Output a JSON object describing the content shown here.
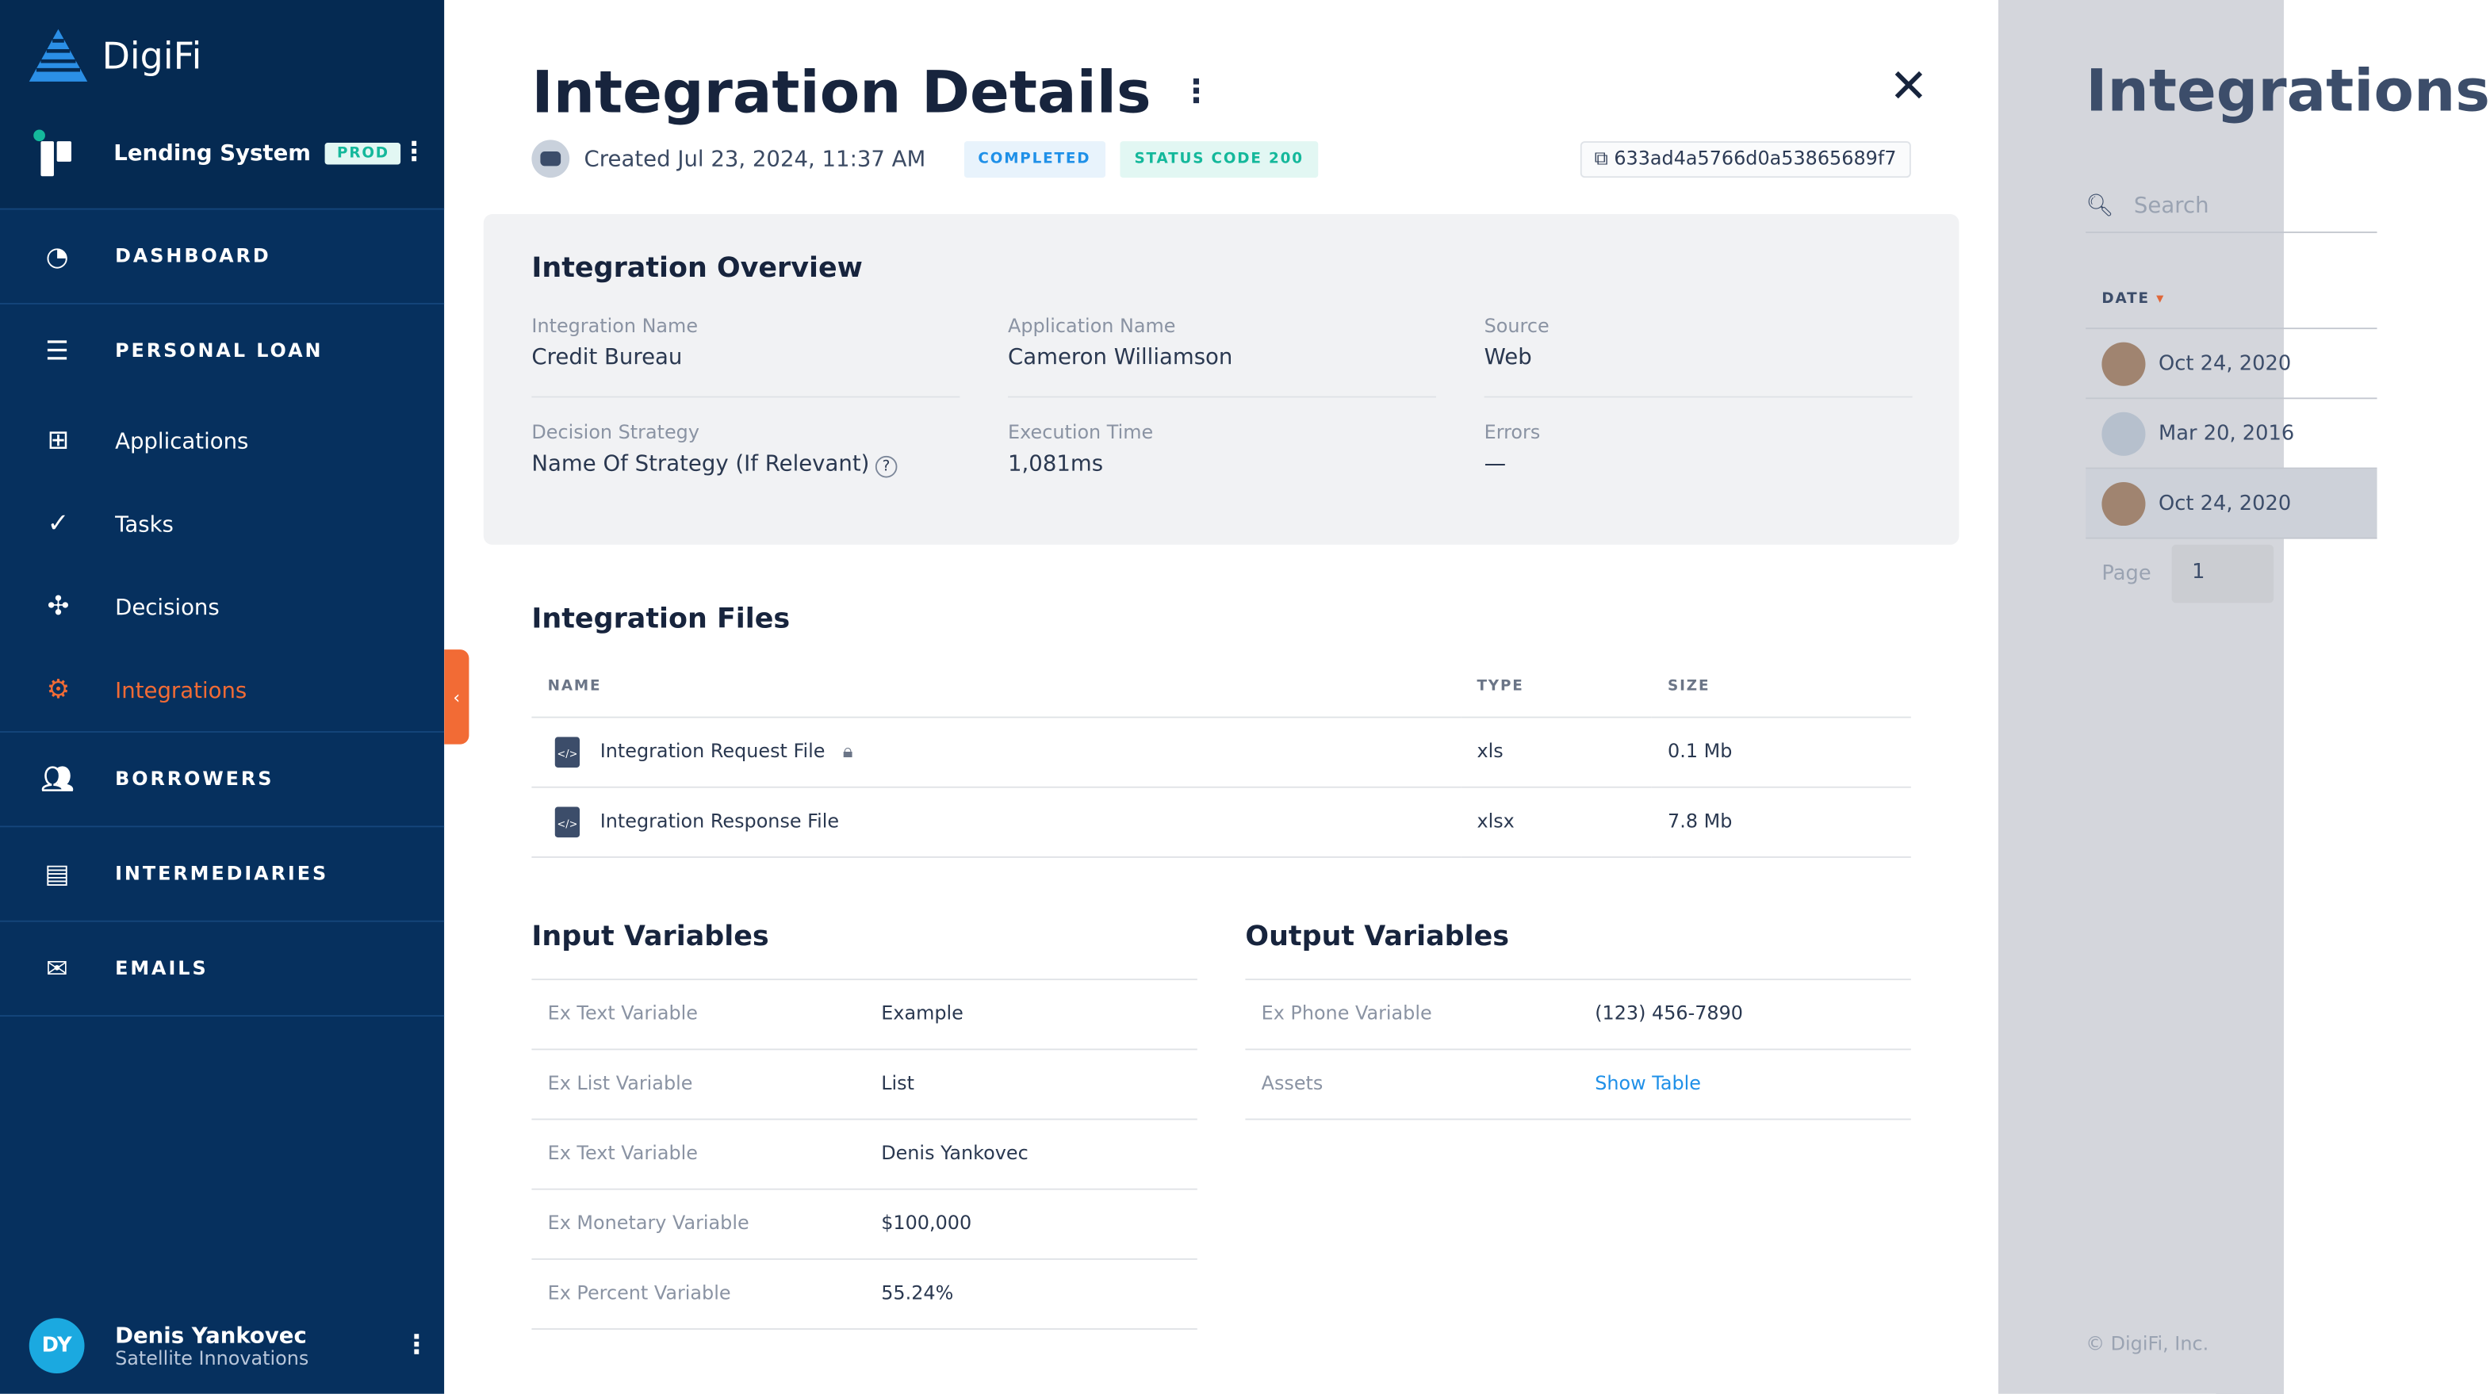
{
  "sidebar": {
    "brand": "DigiFi",
    "system_name": "Lending System",
    "env_badge": "PROD",
    "items": [
      {
        "label": "DASHBOARD",
        "icon": "dashboard-icon"
      },
      {
        "label": "PERSONAL LOAN",
        "icon": "menu-icon"
      },
      {
        "label": "Applications",
        "icon": "grid-icon"
      },
      {
        "label": "Tasks",
        "icon": "check-circle-icon"
      },
      {
        "label": "Decisions",
        "icon": "decision-icon"
      },
      {
        "label": "Integrations",
        "icon": "chip-icon",
        "active": true
      },
      {
        "label": "BORROWERS",
        "icon": "users-icon"
      },
      {
        "label": "INTERMEDIARIES",
        "icon": "briefcase-icon"
      },
      {
        "label": "EMAILS",
        "icon": "mail-icon"
      }
    ],
    "user": {
      "initials": "DY",
      "name": "Denis Yankovec",
      "org": "Satellite Innovations"
    }
  },
  "colors": {
    "accent": "#f26b35",
    "sidebar": "#06305e",
    "completed": "#1f90e8",
    "status": "#14b89b"
  },
  "panel": {
    "title": "Integration Details",
    "created": "Created Jul 23, 2024, 11:37 AM",
    "status": "COMPLETED",
    "status_code": "STATUS CODE 200",
    "id": "633ad4a5766d0a53865689f7",
    "overview": {
      "title": "Integration Overview",
      "fields": [
        {
          "label": "Integration Name",
          "value": "Credit Bureau"
        },
        {
          "label": "Application Name",
          "value": "Cameron Williamson"
        },
        {
          "label": "Source",
          "value": "Web"
        },
        {
          "label": "Decision Strategy",
          "value": "Name Of Strategy (If Relevant)"
        },
        {
          "label": "Execution Time",
          "value": "1,081ms"
        },
        {
          "label": "Errors",
          "value": "—"
        }
      ]
    },
    "files": {
      "title": "Integration Files",
      "headers": [
        "NAME",
        "TYPE",
        "SIZE"
      ],
      "rows": [
        {
          "name": "Integration Request File",
          "type": "xls",
          "size": "0.1 Mb",
          "locked": true
        },
        {
          "name": "Integration Response File",
          "type": "xlsx",
          "size": "7.8 Mb"
        }
      ]
    },
    "input": {
      "title": "Input Variables",
      "rows": [
        [
          "Ex Text Variable",
          "Example"
        ],
        [
          "Ex List Variable",
          "List"
        ],
        [
          "Ex Text Variable",
          "Denis Yankovec"
        ],
        [
          "Ex Monetary Variable",
          "$100,000"
        ],
        [
          "Ex Percent Variable",
          "55.24%"
        ]
      ]
    },
    "output": {
      "title": "Output Variables",
      "rows": [
        [
          "Ex Phone Variable",
          "(123) 456-7890"
        ],
        [
          "Assets",
          "Show Table"
        ]
      ]
    }
  },
  "background": {
    "title": "Integrations",
    "search_placeholder": "Search",
    "date_header": "DATE",
    "rows": [
      "Oct 24, 2020",
      "Mar 20, 2016",
      "Oct 24, 2020"
    ],
    "page_label": "Page",
    "page": "1",
    "footer": "© DigiFi, Inc."
  }
}
